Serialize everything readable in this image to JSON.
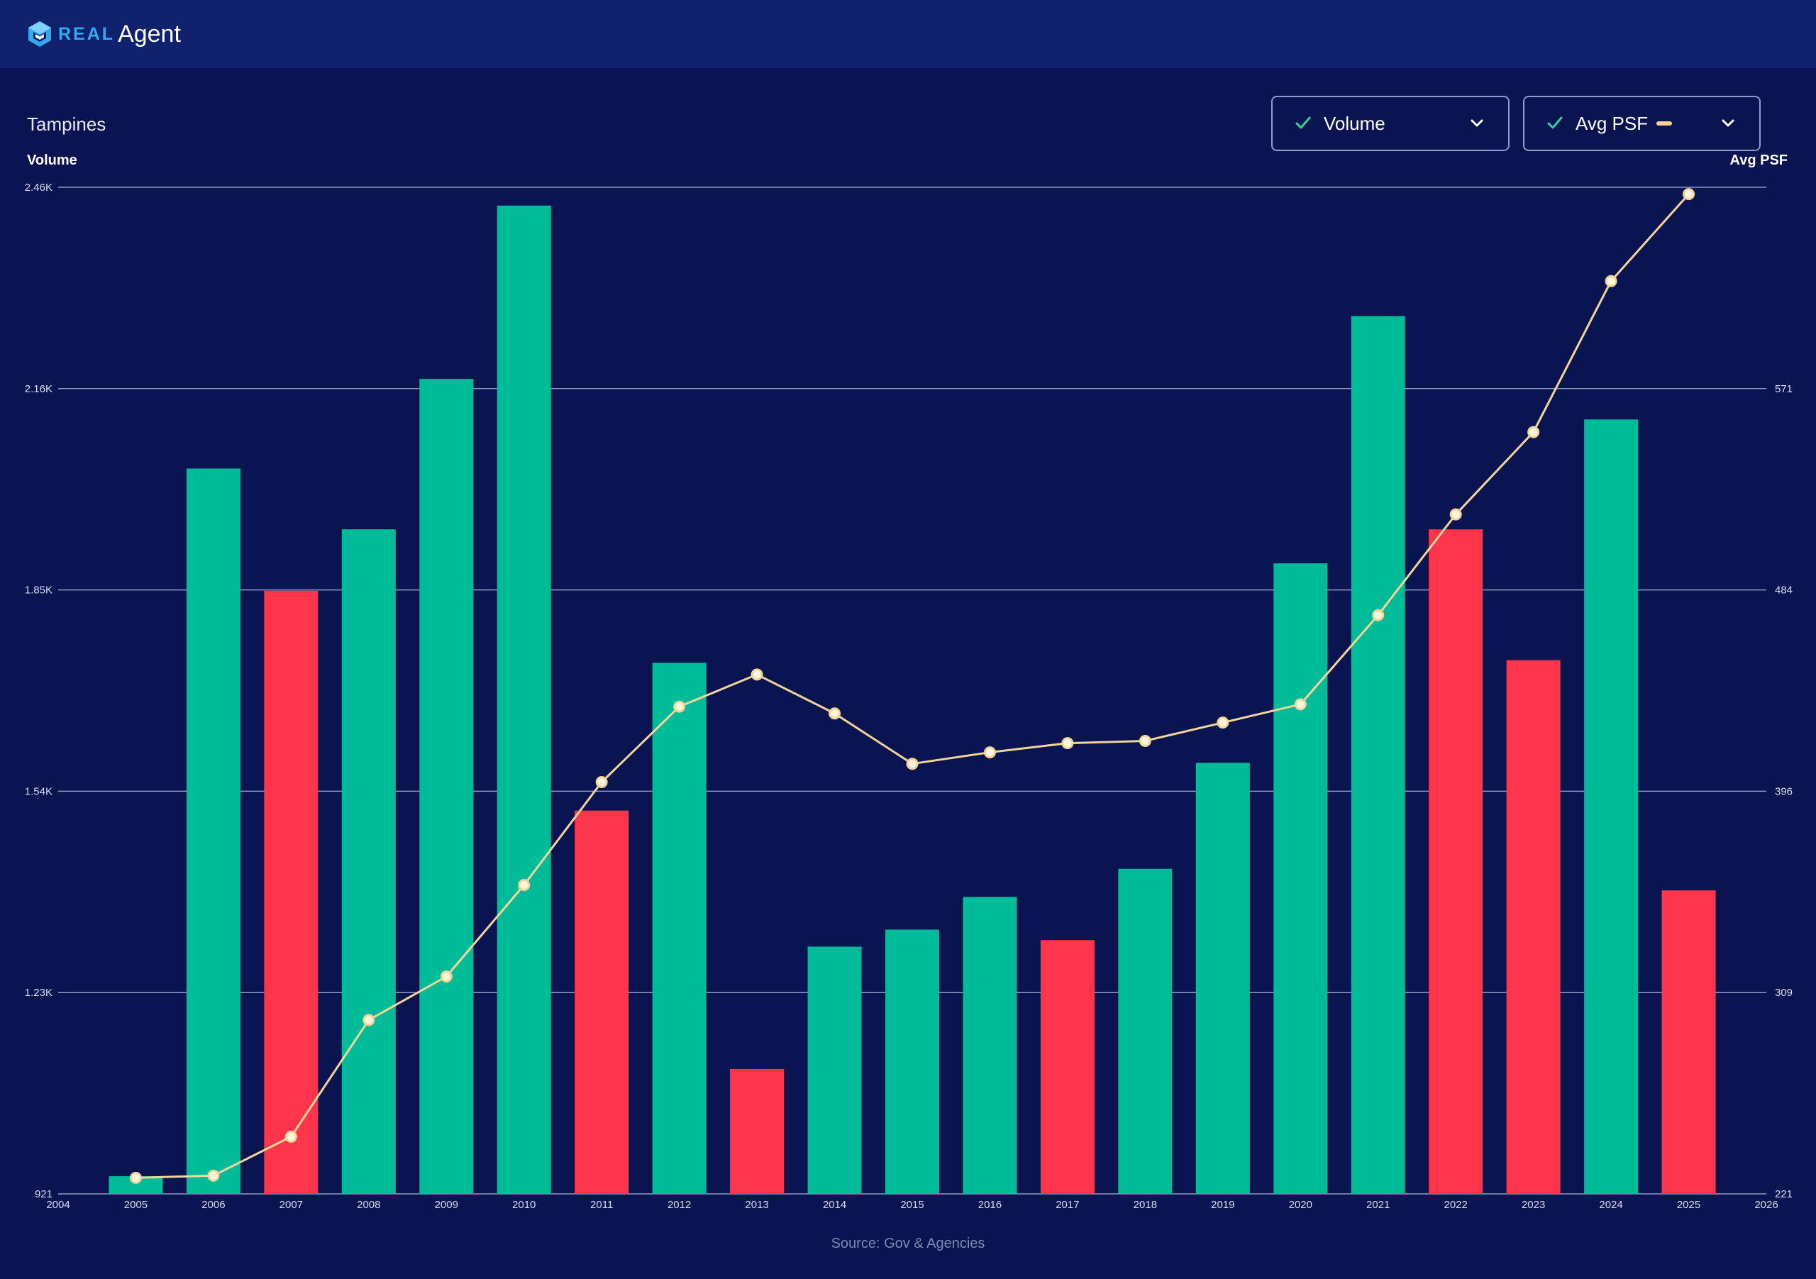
{
  "header": {
    "logo_real": "REAL",
    "logo_agent": "Agent"
  },
  "area": "Tampines",
  "controls": {
    "volume_label": "Volume",
    "psf_label": "Avg PSF"
  },
  "source": "Source: Gov & Agencies",
  "colors": {
    "up_bar": "#00bb98",
    "down_bar": "#ff354b",
    "psf_line": "#f3d599",
    "background": "#0a1450",
    "header": "#10226e",
    "check": "#2bd49b"
  },
  "chart_data": {
    "type": "bar",
    "title": "",
    "xlabel": "",
    "ylabel": "Volume",
    "y2label": "Avg PSF",
    "x_ticks": [
      "2004",
      "2005",
      "2006",
      "2007",
      "2008",
      "2009",
      "2010",
      "2011",
      "2012",
      "2013",
      "2014",
      "2015",
      "2016",
      "2017",
      "2018",
      "2019",
      "2020",
      "2021",
      "2022",
      "2023",
      "2024",
      "2025",
      "2026"
    ],
    "ylim": [
      921,
      2460
    ],
    "y_ticks": [
      "921",
      "1.23K",
      "1.54K",
      "1.85K",
      "2.16K",
      "2.46K"
    ],
    "y2lim": [
      221,
      661
    ],
    "y2_ticks": [
      "221",
      "309",
      "396",
      "484",
      "571"
    ],
    "grid": true,
    "legend": "top-right",
    "categories": [
      "2005",
      "2006",
      "2007",
      "2008",
      "2009",
      "2010",
      "2011",
      "2012",
      "2013",
      "2014",
      "2015",
      "2016",
      "2017",
      "2018",
      "2019",
      "2020",
      "2021",
      "2022",
      "2023",
      "2024",
      "2025"
    ],
    "series": [
      {
        "name": "Volume",
        "type": "bar",
        "axis": "left",
        "values": [
          948,
          2030,
          1843,
          1937,
          2167,
          2432,
          1507,
          1733,
          1112,
          1299,
          1325,
          1375,
          1309,
          1418,
          1580,
          1885,
          2263,
          1937,
          1737,
          2105,
          1385
        ]
      },
      {
        "name": "Avg PSF",
        "type": "line",
        "axis": "right",
        "values": [
          228,
          229,
          246,
          297,
          316,
          356,
          401,
          434,
          448,
          431,
          409,
          414,
          418,
          419,
          427,
          435,
          474,
          518,
          554,
          620,
          658
        ]
      }
    ]
  }
}
